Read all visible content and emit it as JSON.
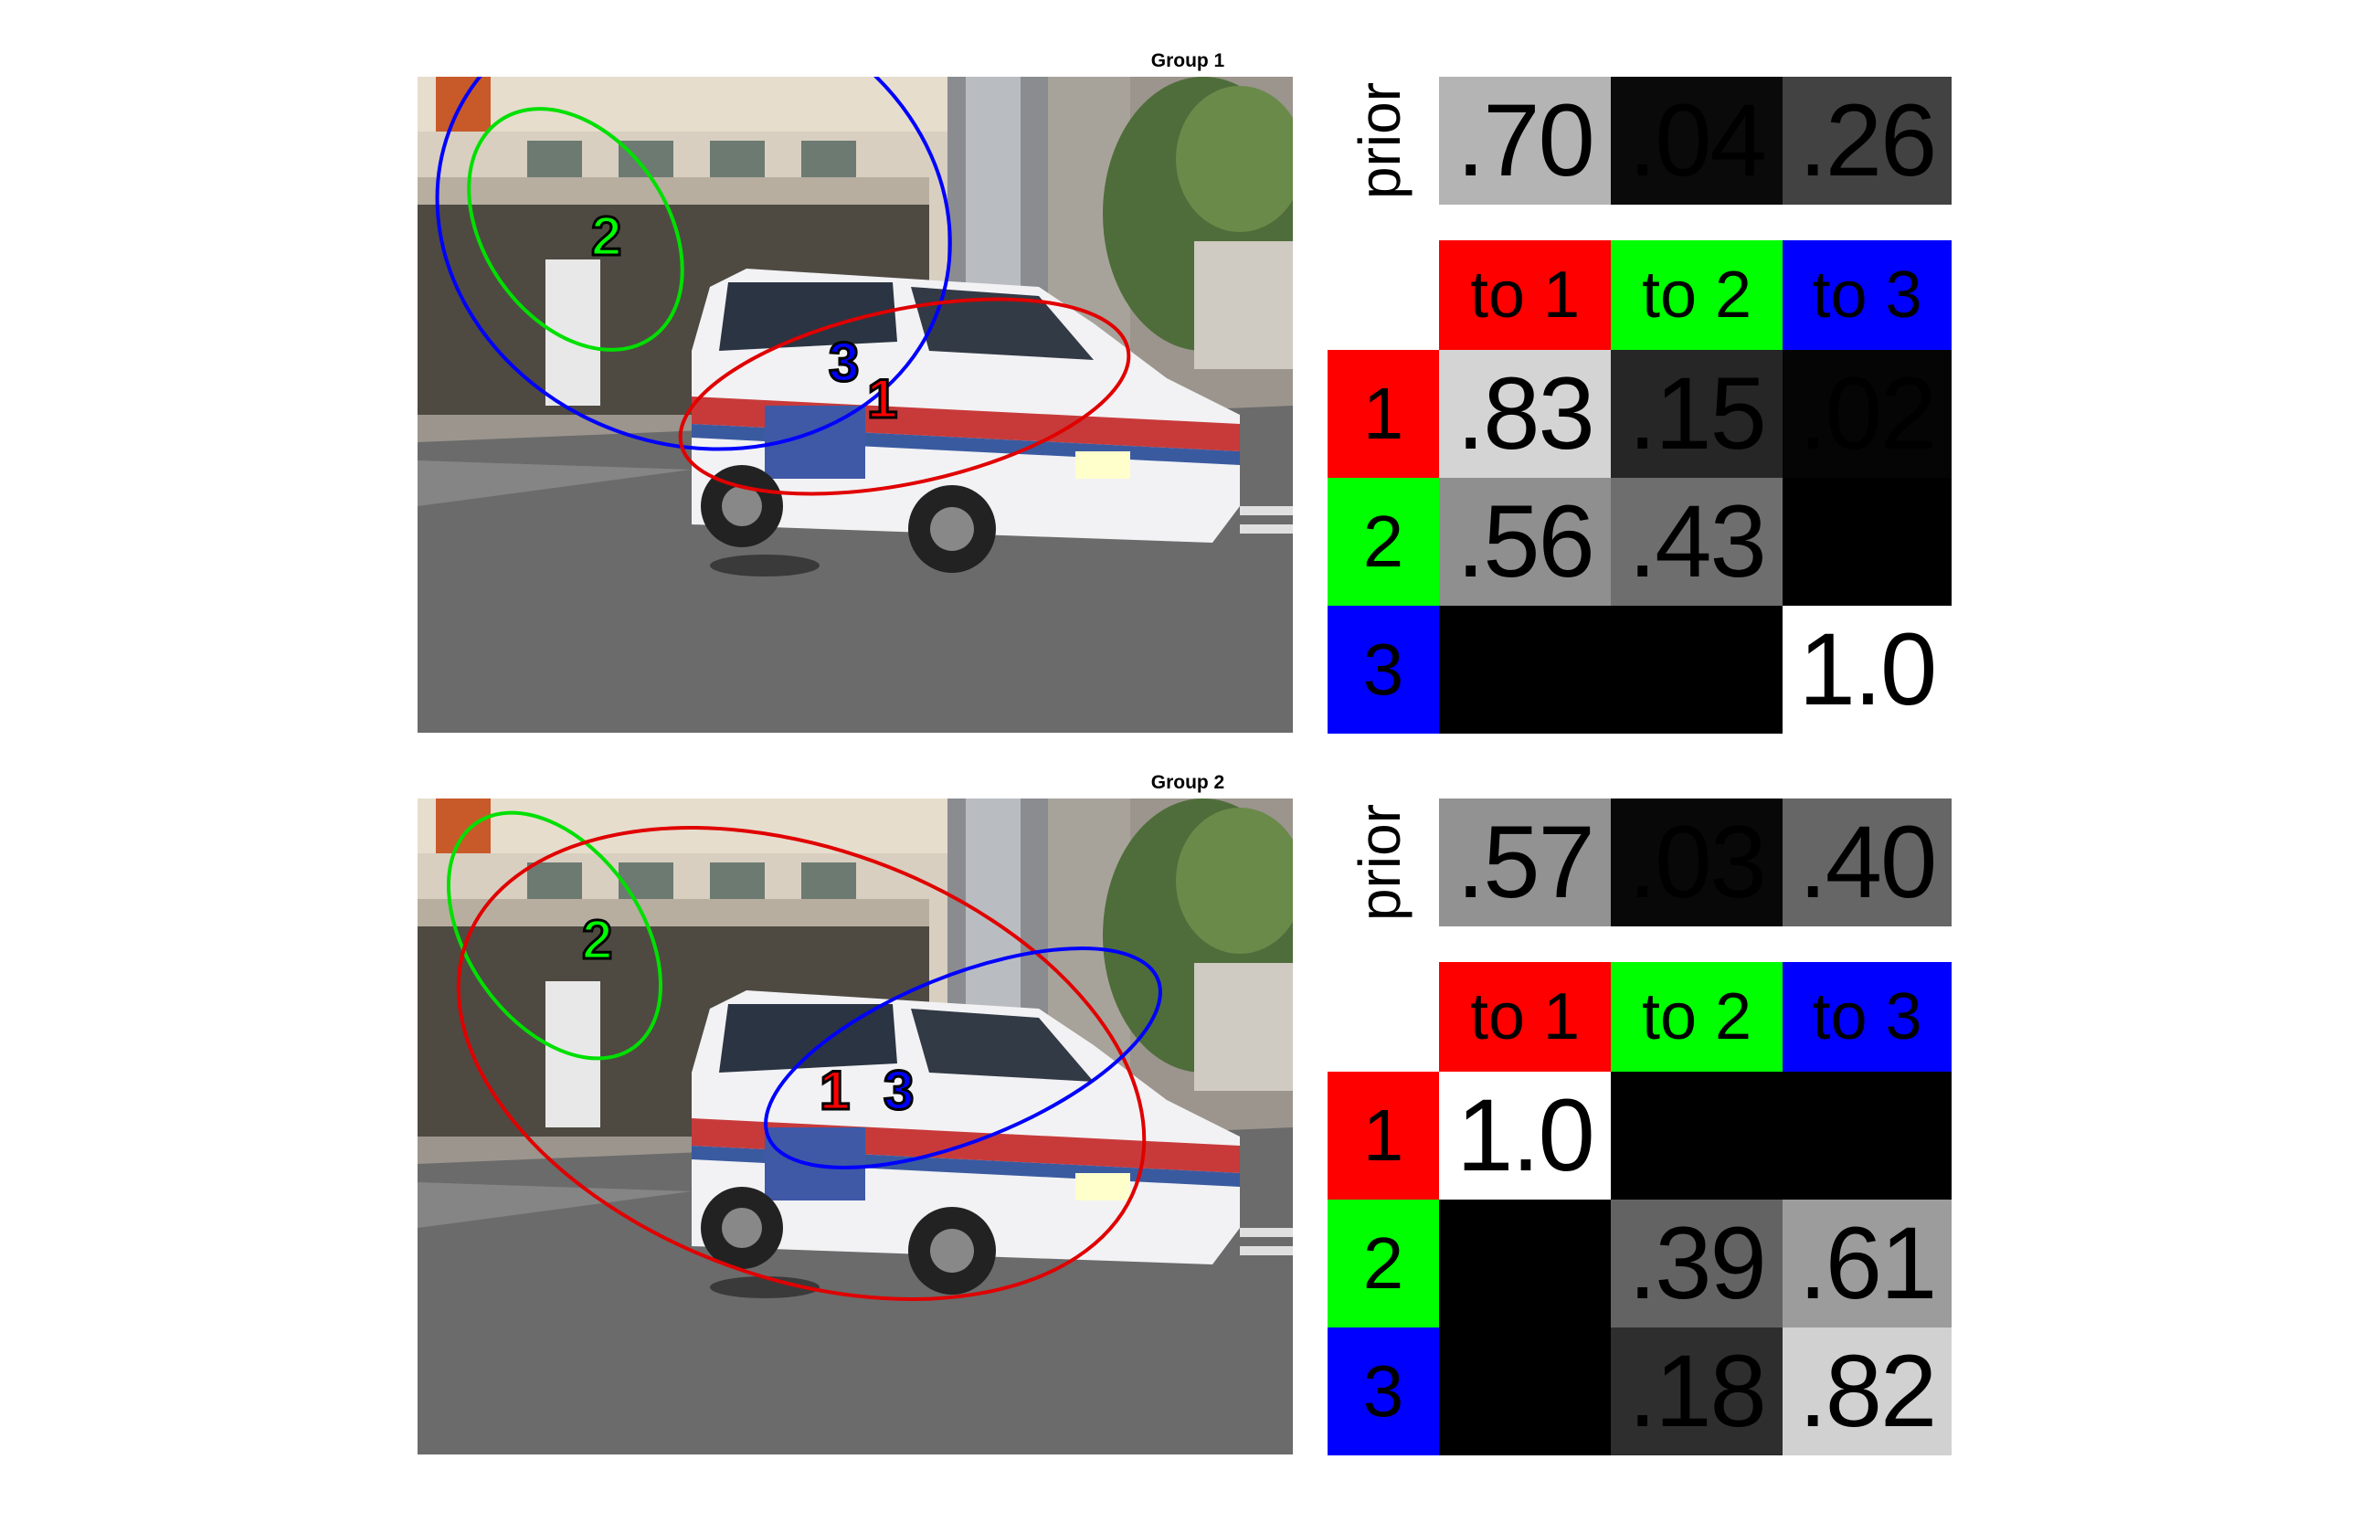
{
  "groups": [
    {
      "title": "Group 1",
      "prior_label": "prior",
      "prior": [
        {
          "text": ".70",
          "shade": "#b4b4b4"
        },
        {
          "text": ".04",
          "shade": "#0a0a0a"
        },
        {
          "text": ".26",
          "shade": "#424242"
        }
      ],
      "col_headers": [
        {
          "text": "to 1",
          "color": "#ff0000"
        },
        {
          "text": "to 2",
          "color": "#00ff00"
        },
        {
          "text": "to 3",
          "color": "#0000ff"
        }
      ],
      "rows": [
        {
          "label": "1",
          "color": "#ff0000",
          "cells": [
            {
              "text": ".83",
              "shade": "#d4d4d4"
            },
            {
              "text": ".15",
              "shade": "#262626"
            },
            {
              "text": ".02",
              "shade": "#050505"
            }
          ]
        },
        {
          "label": "2",
          "color": "#00ff00",
          "cells": [
            {
              "text": ".56",
              "shade": "#8f8f8f"
            },
            {
              "text": ".43",
              "shade": "#6e6e6e"
            },
            {
              "text": "",
              "shade": "#000000"
            }
          ]
        },
        {
          "label": "3",
          "color": "#0000ff",
          "cells": [
            {
              "text": "",
              "shade": "#000000"
            },
            {
              "text": "",
              "shade": "#000000"
            },
            {
              "text": "1.0",
              "shade": "#ffffff"
            }
          ]
        }
      ],
      "scene": {
        "clusters": [
          {
            "label": "2",
            "color": "#00ff00"
          },
          {
            "label": "3",
            "color": "#0000ff"
          },
          {
            "label": "1",
            "color": "#ff0000"
          }
        ]
      }
    },
    {
      "title": "Group 2",
      "prior_label": "prior",
      "prior": [
        {
          "text": ".57",
          "shade": "#929292"
        },
        {
          "text": ".03",
          "shade": "#080808"
        },
        {
          "text": ".40",
          "shade": "#666666"
        }
      ],
      "col_headers": [
        {
          "text": "to 1",
          "color": "#ff0000"
        },
        {
          "text": "to 2",
          "color": "#00ff00"
        },
        {
          "text": "to 3",
          "color": "#0000ff"
        }
      ],
      "rows": [
        {
          "label": "1",
          "color": "#ff0000",
          "cells": [
            {
              "text": "1.0",
              "shade": "#ffffff"
            },
            {
              "text": "",
              "shade": "#000000"
            },
            {
              "text": "",
              "shade": "#000000"
            }
          ]
        },
        {
          "label": "2",
          "color": "#00ff00",
          "cells": [
            {
              "text": "",
              "shade": "#000000"
            },
            {
              "text": ".39",
              "shade": "#636363"
            },
            {
              "text": ".61",
              "shade": "#9c9c9c"
            }
          ]
        },
        {
          "label": "3",
          "color": "#0000ff",
          "cells": [
            {
              "text": "",
              "shade": "#000000"
            },
            {
              "text": ".18",
              "shade": "#2e2e2e"
            },
            {
              "text": ".82",
              "shade": "#d1d1d1"
            }
          ]
        }
      ],
      "scene": {
        "clusters": [
          {
            "label": "2",
            "color": "#00ff00"
          },
          {
            "label": "1",
            "color": "#ff0000"
          },
          {
            "label": "3",
            "color": "#0000ff"
          }
        ]
      }
    }
  ]
}
